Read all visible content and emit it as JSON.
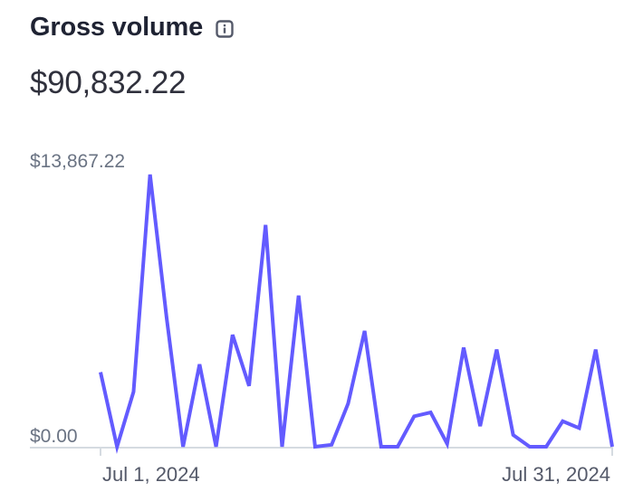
{
  "header": {
    "title": "Gross volume",
    "info_icon": "info-icon"
  },
  "summary": {
    "total": "$90,832.22"
  },
  "colors": {
    "line": "#635bff",
    "axis": "#d5dbe1",
    "label": "#6a7383",
    "title": "#1f2333"
  },
  "chart_data": {
    "type": "line",
    "title": "Gross volume",
    "x_start": "Jul 1, 2024",
    "x_end": "Jul 31, 2024",
    "x_tick_labels": [
      "Jul 1, 2024",
      "Jul 31, 2024"
    ],
    "y_tick_labels": [
      "$13,867.22",
      "$0.00"
    ],
    "ylim": [
      0,
      13867.22
    ],
    "grid": false,
    "legend": "none",
    "series": [
      {
        "name": "",
        "x": [
          "Jun 30",
          "Jul 1",
          "Jul 2",
          "Jul 3",
          "Jul 4",
          "Jul 5",
          "Jul 6",
          "Jul 7",
          "Jul 8",
          "Jul 9",
          "Jul 10",
          "Jul 11",
          "Jul 12",
          "Jul 13",
          "Jul 14",
          "Jul 15",
          "Jul 16",
          "Jul 17",
          "Jul 18",
          "Jul 19",
          "Jul 20",
          "Jul 21",
          "Jul 22",
          "Jul 23",
          "Jul 24",
          "Jul 25",
          "Jul 26",
          "Jul 27",
          "Jul 28",
          "Jul 29",
          "Jul 30",
          "Jul 31"
        ],
        "values": [
          3800,
          0,
          2800,
          13867,
          6600,
          0,
          4200,
          0,
          5700,
          3100,
          11300,
          0,
          7700,
          0,
          100,
          2200,
          5900,
          0,
          0,
          1550,
          1750,
          150,
          5050,
          1050,
          4950,
          600,
          0,
          0,
          1300,
          950,
          4950,
          0
        ]
      }
    ]
  }
}
